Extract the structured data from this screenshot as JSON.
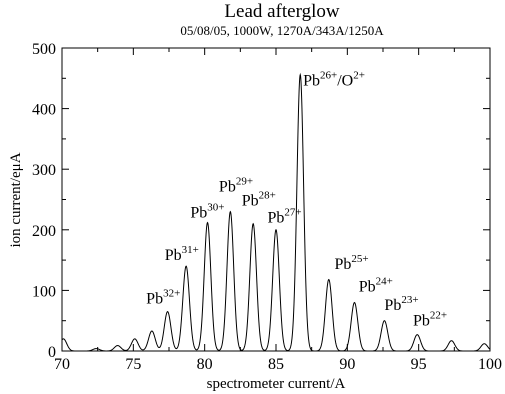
{
  "chart_data": {
    "type": "line",
    "title": "Lead afterglow",
    "subtitle": "05/08/05, 1000W, 1270A/343A/1250A",
    "xlabel": "spectrometer current/A",
    "ylabel": "ion current/eμA",
    "xlim": [
      70,
      100
    ],
    "ylim": [
      0,
      500
    ],
    "x_ticks": [
      "70",
      "75",
      "80",
      "85",
      "90",
      "95",
      "100"
    ],
    "y_ticks": [
      "0",
      "100",
      "200",
      "300",
      "400",
      "500"
    ],
    "grid": false,
    "legend": "none",
    "line_color": "#000000",
    "peaks": [
      {
        "x": 70.1,
        "y": 20
      },
      {
        "x": 72.4,
        "y": 4
      },
      {
        "x": 73.9,
        "y": 9
      },
      {
        "x": 75.1,
        "y": 20
      },
      {
        "x": 76.3,
        "y": 33
      },
      {
        "x": 77.4,
        "y": 65
      },
      {
        "x": 78.7,
        "y": 140
      },
      {
        "x": 80.2,
        "y": 212
      },
      {
        "x": 81.8,
        "y": 230
      },
      {
        "x": 83.4,
        "y": 210
      },
      {
        "x": 85.0,
        "y": 200
      },
      {
        "x": 86.7,
        "y": 456
      },
      {
        "x": 88.7,
        "y": 118
      },
      {
        "x": 90.5,
        "y": 80
      },
      {
        "x": 92.6,
        "y": 50
      },
      {
        "x": 94.9,
        "y": 27
      },
      {
        "x": 97.3,
        "y": 17
      },
      {
        "x": 99.6,
        "y": 12
      }
    ],
    "annotations": [
      {
        "base": "Pb",
        "sup": "32+",
        "x": 75.9,
        "y": 78
      },
      {
        "base": "Pb",
        "sup": "31+",
        "x": 77.2,
        "y": 150
      },
      {
        "base": "Pb",
        "sup": "30+",
        "x": 79.0,
        "y": 220
      },
      {
        "base": "Pb",
        "sup": "29+",
        "x": 81.0,
        "y": 263
      },
      {
        "base": "Pb",
        "sup": "28+",
        "x": 82.6,
        "y": 240
      },
      {
        "base": "Pb",
        "sup": "27+",
        "x": 84.4,
        "y": 212
      },
      {
        "base": "Pb",
        "sup": "26+",
        "x": 86.9,
        "y": 438,
        "suffix": "/O",
        "sup2": "2+"
      },
      {
        "base": "Pb",
        "sup": "25+",
        "x": 89.1,
        "y": 135
      },
      {
        "base": "Pb",
        "sup": "24+",
        "x": 90.8,
        "y": 98
      },
      {
        "base": "Pb",
        "sup": "23+",
        "x": 92.6,
        "y": 68
      },
      {
        "base": "Pb",
        "sup": "22+",
        "x": 94.6,
        "y": 42
      }
    ]
  }
}
